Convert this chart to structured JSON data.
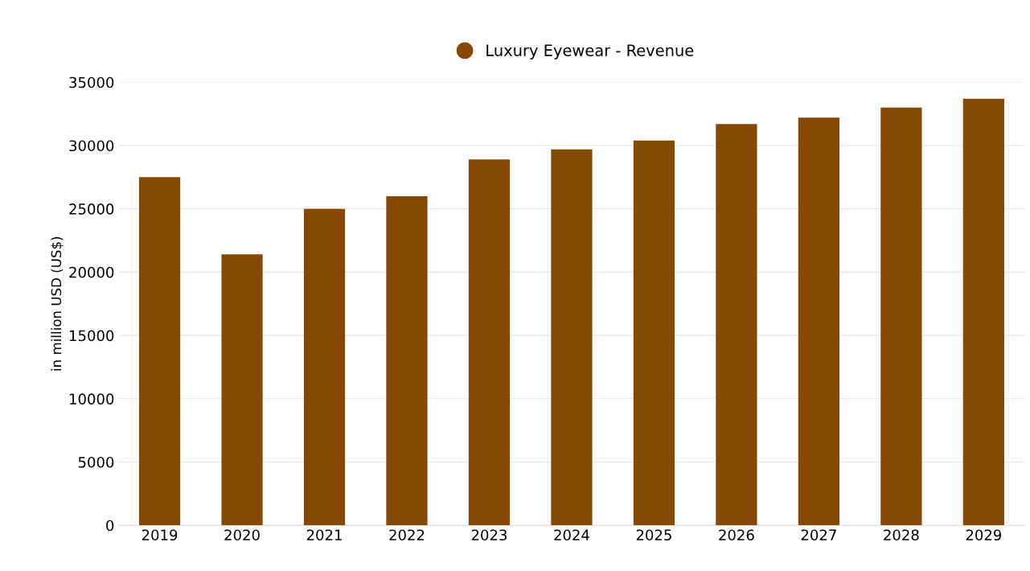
{
  "chart_data": {
    "type": "bar",
    "ylabel": "in million USD (US$)",
    "categories": [
      "2019",
      "2020",
      "2021",
      "2022",
      "2023",
      "2024",
      "2025",
      "2026",
      "2027",
      "2028",
      "2029"
    ],
    "series": [
      {
        "name": "Luxury Eyewear - Revenue",
        "color": "#854805",
        "values": [
          27500,
          21400,
          25000,
          26000,
          28900,
          29700,
          30400,
          31700,
          32200,
          33000,
          33700
        ]
      }
    ],
    "ylim": [
      0,
      35000
    ],
    "yticks": [
      0,
      5000,
      10000,
      15000,
      20000,
      25000,
      30000,
      35000
    ],
    "grid": "y",
    "legend": "top"
  }
}
